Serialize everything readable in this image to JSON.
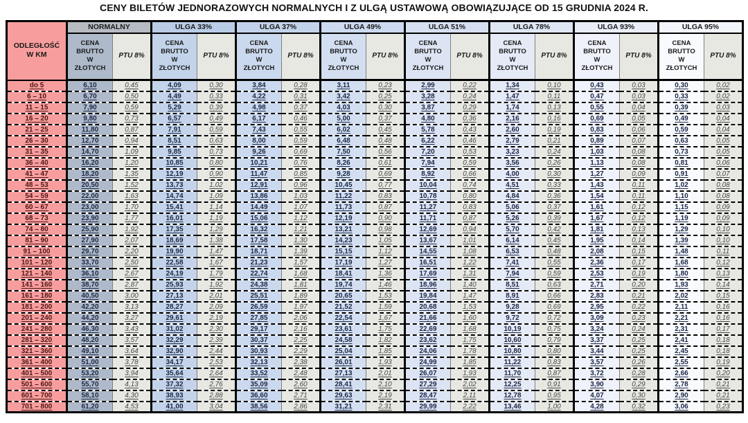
{
  "title": "CENY BILETÓW JEDNORAZOWYCH NORMALNYCH I Z ULGĄ USTAWOWĄ OBOWIĄZUJĄCE OD 15 GRUDNIA 2024 R.",
  "table": {
    "distance_header": "ODLEGŁOŚĆ\nW KM",
    "price_header": "CENA\nBRUTTO\nW\nZŁOTYCH",
    "tax_header": "PTU 8%",
    "distance_bg": "#f89d9d",
    "groups": [
      {
        "label": "NORMALNY",
        "header_bg": "#b6bbc2",
        "price_bg": "#aebaca",
        "tax_bg": "#e8e8e3"
      },
      {
        "label": "ULGA 33%",
        "header_bg": "#b9cce6",
        "price_bg": "#c3d4ea",
        "tax_bg": "#e8e8e3"
      },
      {
        "label": "ULGA 37%",
        "header_bg": "#c2d2e9",
        "price_bg": "#cbd9ee",
        "tax_bg": "#e8e8e3"
      },
      {
        "label": "ULGA 49%",
        "header_bg": "#ccd9ee",
        "price_bg": "#d3dff1",
        "tax_bg": "#e8e8e3"
      },
      {
        "label": "ULGA 51%",
        "header_bg": "#d5dff1",
        "price_bg": "#dce4f4",
        "tax_bg": "#e8e8e3"
      },
      {
        "label": "ULGA 78%",
        "header_bg": "#dee6f4",
        "price_bg": "#e4eaf6",
        "tax_bg": "#e8e8e3"
      },
      {
        "label": "ULGA 93%",
        "header_bg": "#e9edf7",
        "price_bg": "#eff2fa",
        "tax_bg": "#e8e8e3"
      },
      {
        "label": "ULGA 95%",
        "header_bg": "#f2f5fb",
        "price_bg": "#f8fafd",
        "tax_bg": "#e8e8e3"
      }
    ],
    "rows": [
      {
        "distance": "do 5",
        "cells": [
          "6,10",
          "0,45",
          "4,09",
          "0,30",
          "3,84",
          "0,28",
          "3,11",
          "0,23",
          "2,99",
          "0,22",
          "1,34",
          "0,10",
          "0,43",
          "0,03",
          "0,30",
          "0,02"
        ]
      },
      {
        "distance": "6 – 10",
        "cells": [
          "6,70",
          "0,50",
          "4,49",
          "0,33",
          "4,22",
          "0,31",
          "3,42",
          "0,25",
          "3,28",
          "0,24",
          "1,47",
          "0,11",
          "0,47",
          "0,03",
          "0,33",
          "0,02"
        ]
      },
      {
        "distance": "11 – 15",
        "cells": [
          "7,90",
          "0,59",
          "5,29",
          "0,39",
          "4,98",
          "0,37",
          "4,03",
          "0,30",
          "3,87",
          "0,29",
          "1,74",
          "0,13",
          "0,55",
          "0,04",
          "0,39",
          "0,03"
        ]
      },
      {
        "distance": "16 – 20",
        "cells": [
          "9,80",
          "0,73",
          "6,57",
          "0,49",
          "6,17",
          "0,46",
          "5,00",
          "0,37",
          "4,80",
          "0,36",
          "2,16",
          "0,16",
          "0,69",
          "0,05",
          "0,49",
          "0,04"
        ]
      },
      {
        "distance": "21 – 25",
        "cells": [
          "11,80",
          "0,87",
          "7,91",
          "0,59",
          "7,43",
          "0,55",
          "6,02",
          "0,45",
          "5,78",
          "0,43",
          "2,60",
          "0,19",
          "0,83",
          "0,06",
          "0,59",
          "0,04"
        ]
      },
      {
        "distance": "26 – 30",
        "cells": [
          "12,70",
          "0,94",
          "8,51",
          "0,63",
          "8,00",
          "0,59",
          "6,48",
          "0,48",
          "6,22",
          "0,46",
          "2,79",
          "0,21",
          "0,89",
          "0,07",
          "0,63",
          "0,05"
        ]
      },
      {
        "distance": "31 – 35",
        "cells": [
          "14,70",
          "1,09",
          "9,85",
          "0,73",
          "9,26",
          "0,69",
          "7,50",
          "0,56",
          "7,20",
          "0,53",
          "3,23",
          "0,24",
          "1,03",
          "0,08",
          "0,73",
          "0,05"
        ]
      },
      {
        "distance": "36 – 40",
        "cells": [
          "16,20",
          "1,20",
          "10,85",
          "0,80",
          "10,21",
          "0,76",
          "8,26",
          "0,61",
          "7,94",
          "0,59",
          "3,56",
          "0,26",
          "1,13",
          "0,08",
          "0,81",
          "0,06"
        ]
      },
      {
        "distance": "41 – 47",
        "cells": [
          "18,20",
          "1,35",
          "12,19",
          "0,90",
          "11,47",
          "0,85",
          "9,28",
          "0,69",
          "8,92",
          "0,66",
          "4,00",
          "0,30",
          "1,27",
          "0,09",
          "0,91",
          "0,07"
        ]
      },
      {
        "distance": "48 – 53",
        "cells": [
          "20,50",
          "1,52",
          "13,73",
          "1,02",
          "12,91",
          "0,96",
          "10,45",
          "0,77",
          "10,04",
          "0,74",
          "4,51",
          "0,33",
          "1,43",
          "0,11",
          "1,02",
          "0,08"
        ]
      },
      {
        "distance": "54 – 59",
        "cells": [
          "22,00",
          "1,63",
          "14,74",
          "1,09",
          "13,86",
          "1,03",
          "11,22",
          "0,83",
          "10,78",
          "0,80",
          "4,84",
          "0,36",
          "1,54",
          "0,11",
          "1,10",
          "0,08"
        ]
      },
      {
        "distance": "60 – 67",
        "cells": [
          "23,00",
          "1,70",
          "15,41",
          "1,14",
          "14,49",
          "1,07",
          "11,73",
          "0,87",
          "11,27",
          "0,83",
          "5,06",
          "0,37",
          "1,61",
          "0,12",
          "1,15",
          "0,09"
        ]
      },
      {
        "distance": "68 – 73",
        "cells": [
          "23,90",
          "1,77",
          "16,01",
          "1,19",
          "15,06",
          "1,12",
          "12,19",
          "0,90",
          "11,71",
          "0,87",
          "5,26",
          "0,39",
          "1,67",
          "0,12",
          "1,19",
          "0,09"
        ]
      },
      {
        "distance": "74 – 80",
        "cells": [
          "25,90",
          "1,92",
          "17,35",
          "1,29",
          "16,32",
          "1,21",
          "13,21",
          "0,98",
          "12,69",
          "0,94",
          "5,70",
          "0,42",
          "1,81",
          "0,13",
          "1,29",
          "0,10"
        ]
      },
      {
        "distance": "81 – 90",
        "cells": [
          "27,90",
          "2,07",
          "18,69",
          "1,38",
          "17,58",
          "1,30",
          "14,23",
          "1,05",
          "13,67",
          "1,01",
          "6,14",
          "0,45",
          "1,95",
          "0,14",
          "1,39",
          "0,10"
        ]
      },
      {
        "distance": "91 – 100",
        "cells": [
          "29,70",
          "2,20",
          "19,90",
          "1,47",
          "18,71",
          "1,39",
          "15,15",
          "1,12",
          "14,55",
          "1,08",
          "6,53",
          "0,48",
          "2,08",
          "0,15",
          "1,48",
          "0,11"
        ]
      },
      {
        "distance": "101 – 120",
        "cells": [
          "33,70",
          "2,50",
          "22,58",
          "1,67",
          "21,23",
          "1,57",
          "17,19",
          "1,27",
          "16,51",
          "1,22",
          "7,41",
          "0,55",
          "2,36",
          "0,17",
          "1,68",
          "0,12"
        ]
      },
      {
        "distance": "121 – 140",
        "cells": [
          "36,10",
          "2,67",
          "24,19",
          "1,79",
          "22,74",
          "1,68",
          "18,41",
          "1,36",
          "17,69",
          "1,31",
          "7,94",
          "0,59",
          "2,53",
          "0,19",
          "1,80",
          "0,13"
        ]
      },
      {
        "distance": "141 – 160",
        "cells": [
          "38,70",
          "2,87",
          "25,93",
          "1,92",
          "24,38",
          "1,81",
          "19,74",
          "1,46",
          "18,96",
          "1,40",
          "8,51",
          "0,63",
          "2,71",
          "0,20",
          "1,93",
          "0,14"
        ]
      },
      {
        "distance": "161 – 180",
        "cells": [
          "40,50",
          "3,00",
          "27,13",
          "2,01",
          "25,51",
          "1,89",
          "20,65",
          "1,53",
          "19,84",
          "1,47",
          "8,91",
          "0,66",
          "2,83",
          "0,21",
          "2,02",
          "0,15"
        ]
      },
      {
        "distance": "181 – 200",
        "cells": [
          "42,20",
          "3,13",
          "28,27",
          "2,09",
          "26,59",
          "1,97",
          "21,52",
          "1,59",
          "20,68",
          "1,53",
          "9,28",
          "0,69",
          "2,95",
          "0,22",
          "2,11",
          "0,16"
        ]
      },
      {
        "distance": "201 – 240",
        "cells": [
          "44,20",
          "3,27",
          "29,61",
          "2,19",
          "27,85",
          "2,06",
          "22,54",
          "1,67",
          "21,66",
          "1,60",
          "9,72",
          "0,72",
          "3,09",
          "0,23",
          "2,21",
          "0,16"
        ]
      },
      {
        "distance": "241 – 280",
        "cells": [
          "46,30",
          "3,43",
          "31,02",
          "2,30",
          "29,17",
          "2,16",
          "23,61",
          "1,75",
          "22,69",
          "1,68",
          "10,19",
          "0,75",
          "3,24",
          "0,24",
          "2,31",
          "0,17"
        ]
      },
      {
        "distance": "281 – 320",
        "cells": [
          "48,20",
          "3,57",
          "32,29",
          "2,39",
          "30,37",
          "2,25",
          "24,58",
          "1,82",
          "23,62",
          "1,75",
          "10,60",
          "0,79",
          "3,37",
          "0,25",
          "2,41",
          "0,18"
        ]
      },
      {
        "distance": "321 – 360",
        "cells": [
          "49,10",
          "3,64",
          "32,90",
          "2,44",
          "30,93",
          "2,29",
          "25,04",
          "1,85",
          "24,06",
          "1,78",
          "10,80",
          "0,80",
          "3,44",
          "0,25",
          "2,45",
          "0,18"
        ]
      },
      {
        "distance": "361 – 400",
        "cells": [
          "51,00",
          "3,78",
          "34,17",
          "2,53",
          "32,13",
          "2,38",
          "26,01",
          "1,93",
          "24,99",
          "1,85",
          "11,22",
          "0,83",
          "3,57",
          "0,26",
          "2,55",
          "0,19"
        ]
      },
      {
        "distance": "401 – 500",
        "cells": [
          "53,20",
          "3,94",
          "35,64",
          "2,64",
          "33,52",
          "2,48",
          "27,13",
          "2,01",
          "26,07",
          "1,93",
          "11,70",
          "0,87",
          "3,72",
          "0,28",
          "2,66",
          "0,20"
        ]
      },
      {
        "distance": "501 – 600",
        "cells": [
          "55,70",
          "4,13",
          "37,32",
          "2,76",
          "35,09",
          "2,60",
          "28,41",
          "2,10",
          "27,29",
          "2,02",
          "12,25",
          "0,91",
          "3,90",
          "0,29",
          "2,78",
          "0,21"
        ]
      },
      {
        "distance": "601 – 700",
        "cells": [
          "58,10",
          "4,30",
          "38,93",
          "2,88",
          "36,60",
          "2,71",
          "29,63",
          "2,19",
          "28,47",
          "2,11",
          "12,78",
          "0,95",
          "4,07",
          "0,30",
          "2,90",
          "0,21"
        ]
      },
      {
        "distance": "701 – 800",
        "cells": [
          "61,20",
          "4,53",
          "41,00",
          "3,04",
          "38,56",
          "2,86",
          "31,21",
          "2,31",
          "29,99",
          "2,22",
          "13,46",
          "1,00",
          "4,28",
          "0,32",
          "3,06",
          "0,23"
        ]
      }
    ],
    "layout": {
      "distance_col_width": 87,
      "price_col_width": 66,
      "tax_col_width": 56
    }
  }
}
